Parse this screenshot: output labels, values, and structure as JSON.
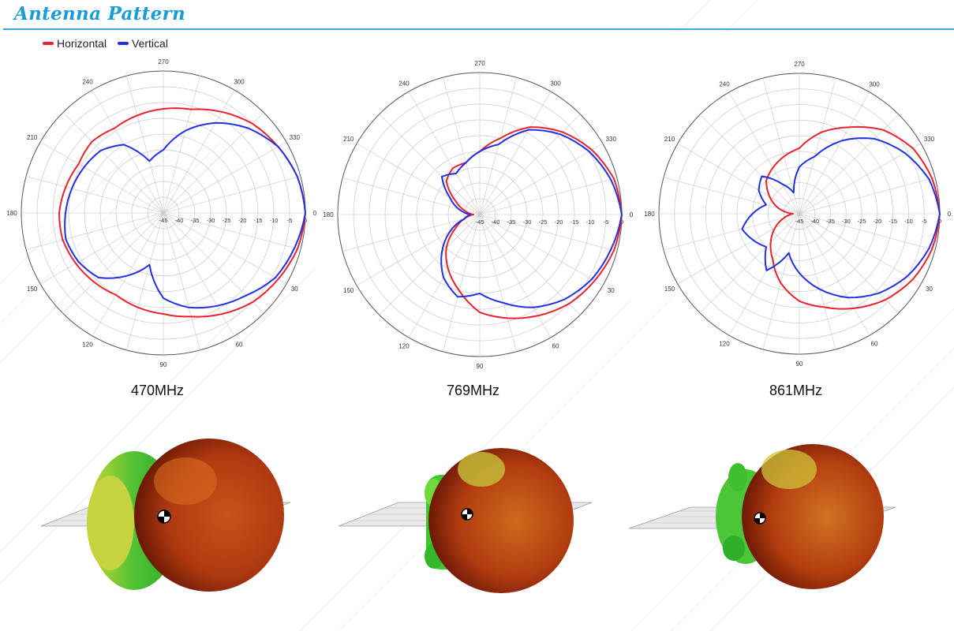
{
  "header": {
    "title": "Antenna Pattern"
  },
  "legend": [
    {
      "label": "Horizontal",
      "color": "#e8232c"
    },
    {
      "label": "Vertical",
      "color": "#2130e0"
    }
  ],
  "chart_data": [
    {
      "type": "polar",
      "frequency_label": "470MHz",
      "angle_ticks": [
        "270",
        "300",
        "330",
        "0",
        "30",
        "60",
        "90",
        "120",
        "150",
        "180",
        "210",
        "240"
      ],
      "radial_ticks": [
        "-45",
        "-40",
        "-35",
        "-30",
        "-25",
        "-20",
        "-15",
        "-10",
        "-5",
        "0"
      ],
      "r_range_db": [
        -45,
        0
      ],
      "angle_step_deg": 15,
      "series": [
        {
          "name": "Horizontal",
          "color": "#e8232c",
          "values": [
            0,
            -1,
            -3,
            -5,
            -8,
            -11,
            -13,
            -14,
            -15,
            -14,
            -13,
            -12,
            -12,
            -13,
            -14,
            -13,
            -14,
            -13,
            -12,
            -11,
            -8,
            -5,
            -3,
            -1
          ]
        },
        {
          "name": "Vertical",
          "color": "#2130e0",
          "values": [
            0,
            -2,
            -4,
            -8,
            -11,
            -14,
            -18,
            -28,
            -22,
            -16,
            -14,
            -13,
            -14,
            -15,
            -16,
            -17,
            -20,
            -28,
            -25,
            -18,
            -12,
            -7,
            -3,
            -1
          ]
        }
      ]
    },
    {
      "type": "polar",
      "frequency_label": "769MHz",
      "angle_ticks": [
        "270",
        "300",
        "330",
        "0",
        "30",
        "60",
        "90",
        "120",
        "150",
        "180",
        "210",
        "240"
      ],
      "radial_ticks": [
        "-45",
        "-40",
        "-35",
        "-30",
        "-25",
        "-20",
        "-15",
        "-10",
        "-5",
        "0"
      ],
      "r_range_db": [
        -45,
        0
      ],
      "angle_step_deg": 15,
      "series": [
        {
          "name": "Horizontal",
          "color": "#e8232c",
          "values": [
            0,
            -1,
            -3,
            -5,
            -8,
            -11,
            -14,
            -20,
            -25,
            -30,
            -36,
            -40,
            -43,
            -40,
            -36,
            -30,
            -28,
            -28,
            -25,
            -20,
            -13,
            -8,
            -4,
            -1
          ]
        },
        {
          "name": "Vertical",
          "color": "#2130e0",
          "values": [
            0,
            -2,
            -4,
            -7,
            -11,
            -16,
            -20,
            -18,
            -22,
            -28,
            -34,
            -40,
            -42,
            -38,
            -34,
            -28,
            -30,
            -28,
            -25,
            -22,
            -14,
            -9,
            -5,
            -2
          ]
        }
      ]
    },
    {
      "type": "polar",
      "frequency_label": "861MHz",
      "angle_ticks": [
        "270",
        "300",
        "330",
        "0",
        "30",
        "60",
        "90",
        "120",
        "150",
        "180",
        "210",
        "240"
      ],
      "radial_ticks": [
        "-45",
        "-40",
        "-35",
        "-30",
        "-25",
        "-20",
        "-15",
        "-10",
        "-5",
        "0"
      ],
      "r_range_db": [
        -45,
        0
      ],
      "angle_step_deg": 15,
      "series": [
        {
          "name": "Horizontal",
          "color": "#e8232c",
          "values": [
            0,
            -1,
            -3,
            -6,
            -10,
            -14,
            -17,
            -22,
            -28,
            -32,
            -36,
            -40,
            -43,
            -38,
            -34,
            -30,
            -28,
            -26,
            -24,
            -18,
            -13,
            -7,
            -3,
            -1
          ]
        },
        {
          "name": "Vertical",
          "color": "#2130e0",
          "values": [
            0,
            -2,
            -5,
            -9,
            -14,
            -20,
            -26,
            -32,
            -24,
            -30,
            -28,
            -26,
            -30,
            -34,
            -30,
            -28,
            -34,
            -38,
            -30,
            -26,
            -18,
            -11,
            -6,
            -2
          ]
        }
      ]
    }
  ]
}
